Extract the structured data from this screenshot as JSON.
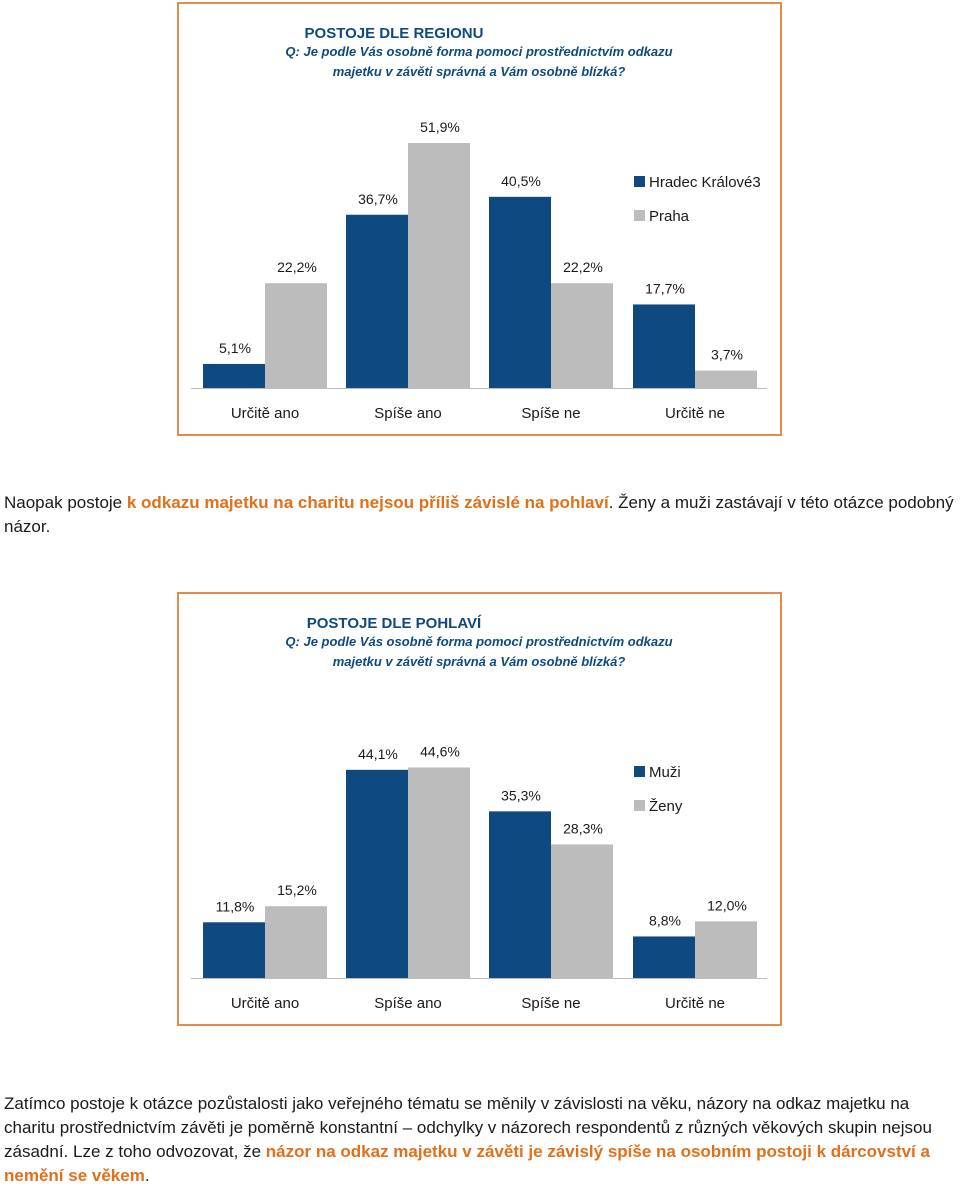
{
  "chart_data": [
    {
      "type": "bar",
      "title": "POSTOJE DLE REGIONU",
      "subtitle_line1": "Q:  Je podle Vás osobně forma pomoci prostřednictvím odkazu",
      "subtitle_line2": "majetku v závěti správná a Vám osobně blízká?",
      "categories": [
        "Určitě ano",
        "Spíše ano",
        "Spíše ne",
        "Určitě ne"
      ],
      "series": [
        {
          "name": "Hradec Králové3",
          "color": "#0e4a80",
          "values": [
            5.1,
            36.7,
            40.5,
            17.7
          ],
          "labels": [
            "5,1%",
            "36,7%",
            "40,5%",
            "17,7%"
          ]
        },
        {
          "name": "Praha",
          "color": "#bcbcbc",
          "values": [
            22.2,
            51.9,
            22.2,
            3.7
          ],
          "labels": [
            "22,2%",
            "51,9%",
            "22,2%",
            "3,7%"
          ]
        }
      ],
      "ylim": [
        0,
        55
      ],
      "grid": false,
      "legend_position": "right"
    },
    {
      "type": "bar",
      "title": "POSTOJE DLE POHLAVÍ",
      "subtitle_line1": "Q:  Je podle Vás osobně forma pomoci prostřednictvím odkazu",
      "subtitle_line2": "majetku v závěti správná a Vám osobně blízká?",
      "categories": [
        "Určitě ano",
        "Spíše ano",
        "Spíše ne",
        "Určitě ne"
      ],
      "series": [
        {
          "name": "Muži",
          "color": "#0e4a80",
          "values": [
            11.8,
            44.1,
            35.3,
            8.8
          ],
          "labels": [
            "11,8%",
            "44,1%",
            "35,3%",
            "8,8%"
          ]
        },
        {
          "name": "Ženy",
          "color": "#bcbcbc",
          "values": [
            15.2,
            44.6,
            28.3,
            12.0
          ],
          "labels": [
            "15,2%",
            "44,6%",
            "28,3%",
            "12,0%"
          ]
        }
      ],
      "ylim": [
        0,
        55
      ],
      "grid": false,
      "legend_position": "right"
    }
  ],
  "text": {
    "p1_a": "Naopak postoje ",
    "p1_b": "k odkazu majetku na charitu nejsou příliš závislé na pohlaví",
    "p1_c": ". Ženy a muži zastávají v této otázce podobný názor.",
    "p2_a": "Zatímco postoje k otázce pozůstalosti jako veřejného tématu se měnily v závislosti na věku, názory na odkaz majetku na charitu prostřednictvím závěti je poměrně konstantní – odchylky v názorech respondentů z různých věkových skupin nejsou zásadní. Lze z toho odvozovat, že ",
    "p2_b": "názor na odkaz majetku v závěti je závislý spíše na osobním postoji k dárcovství a nemění se věkem",
    "p2_c": "."
  }
}
